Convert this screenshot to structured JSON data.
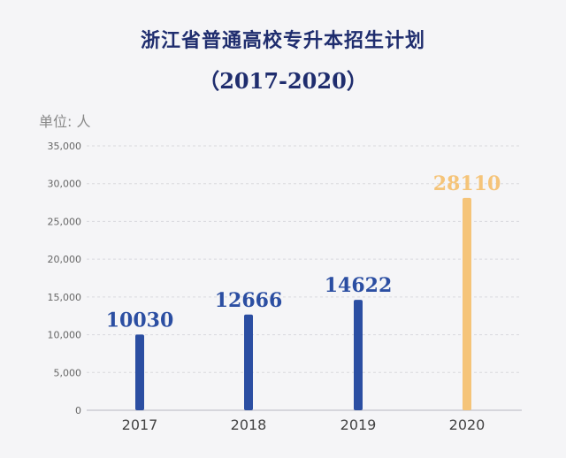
{
  "title": "浙江省普通高校专升本招生计划",
  "subtitle": "（2017-2020）",
  "unit_label": "单位: 人",
  "colors": {
    "title": "#1f2d6e",
    "bar_default": "#2b4ea2",
    "bar_highlight": "#f5c479",
    "value_default": "#2b4ea2",
    "value_highlight": "#f5c479",
    "grid": "#d9d9de",
    "axis_text": "#666666"
  },
  "chart_data": {
    "type": "bar",
    "categories": [
      "2017",
      "2018",
      "2019",
      "2020"
    ],
    "values": [
      10030,
      12666,
      14622,
      28110
    ],
    "highlight_index": 3,
    "title": "浙江省普通高校专升本招生计划",
    "subtitle": "（2017-2020）",
    "ylabel": "单位: 人",
    "ylim": [
      0,
      35000
    ],
    "yticks": [
      0,
      5000,
      10000,
      15000,
      20000,
      25000,
      30000,
      35000
    ],
    "ytick_labels": [
      "0",
      "5,000",
      "10,000",
      "15,000",
      "20,000",
      "25,000",
      "30,000",
      "35,000"
    ],
    "grid": true,
    "data_labels": [
      "10030",
      "12666",
      "14622",
      "28110"
    ]
  }
}
